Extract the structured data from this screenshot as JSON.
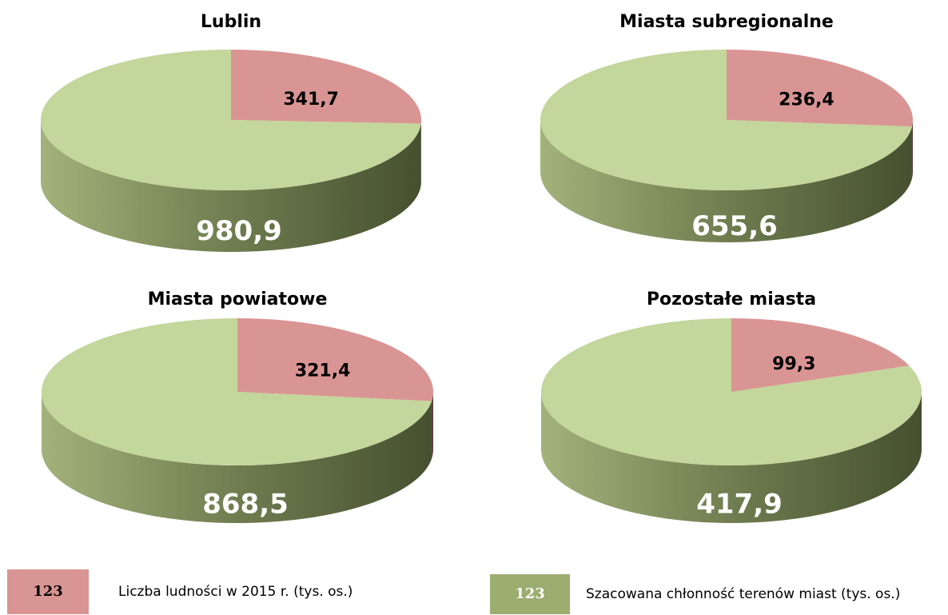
{
  "chart_data": [
    {
      "type": "pie",
      "title": "Lublin",
      "values": [
        341.7,
        980.9
      ],
      "value_labels": [
        "341,7",
        "980,9"
      ],
      "colors": [
        "#d99594",
        "#c3d69b"
      ]
    },
    {
      "type": "pie",
      "title": "Miasta subregionalne",
      "values": [
        236.4,
        655.6
      ],
      "value_labels": [
        "236,4",
        "655,6"
      ],
      "colors": [
        "#d99594",
        "#c3d69b"
      ]
    },
    {
      "type": "pie",
      "title": "Miasta powiatowe",
      "values": [
        321.4,
        868.5
      ],
      "value_labels": [
        "321,4",
        "868,5"
      ],
      "colors": [
        "#d99594",
        "#c3d69b"
      ]
    },
    {
      "type": "pie",
      "title": "Pozostałe miasta",
      "values": [
        99.3,
        417.9
      ],
      "value_labels": [
        "99,3",
        "417,9"
      ],
      "colors": [
        "#d99594",
        "#c3d69b"
      ]
    }
  ],
  "legend": [
    {
      "swatch": "123",
      "label": "Liczba ludności w 2015 r. (tys. os.)",
      "color": "#d99594"
    },
    {
      "swatch": "123",
      "label": "Szacowana chłonność terenów miast (tys. os.)",
      "color": "#9bad6f"
    }
  ]
}
